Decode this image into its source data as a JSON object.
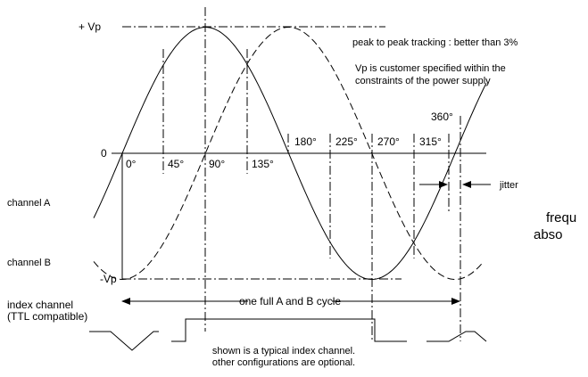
{
  "axis": {
    "plus_vp": "+ Vp",
    "zero": "0",
    "minus_vp": "-Vp"
  },
  "notes": {
    "tracking": "peak to peak tracking : better than 3%",
    "vp_line1": "Vp is customer specified within the",
    "vp_line2": "constraints of the power supply"
  },
  "angles": [
    "0°",
    "45°",
    "90°",
    "135°",
    "180°",
    "225°",
    "270°",
    "315°",
    "360°"
  ],
  "jitter": "jitter",
  "channels": {
    "a": "channel A",
    "b": "channel B",
    "index_line1": "index channel",
    "index_line2": "(TTL compatible)"
  },
  "cut_text": {
    "line1": "frequ",
    "line2": "abso"
  },
  "cycle": "one full A and B cycle",
  "index_note": {
    "line1": "shown is a typical index channel.",
    "line2": "other configurations are optional."
  }
}
